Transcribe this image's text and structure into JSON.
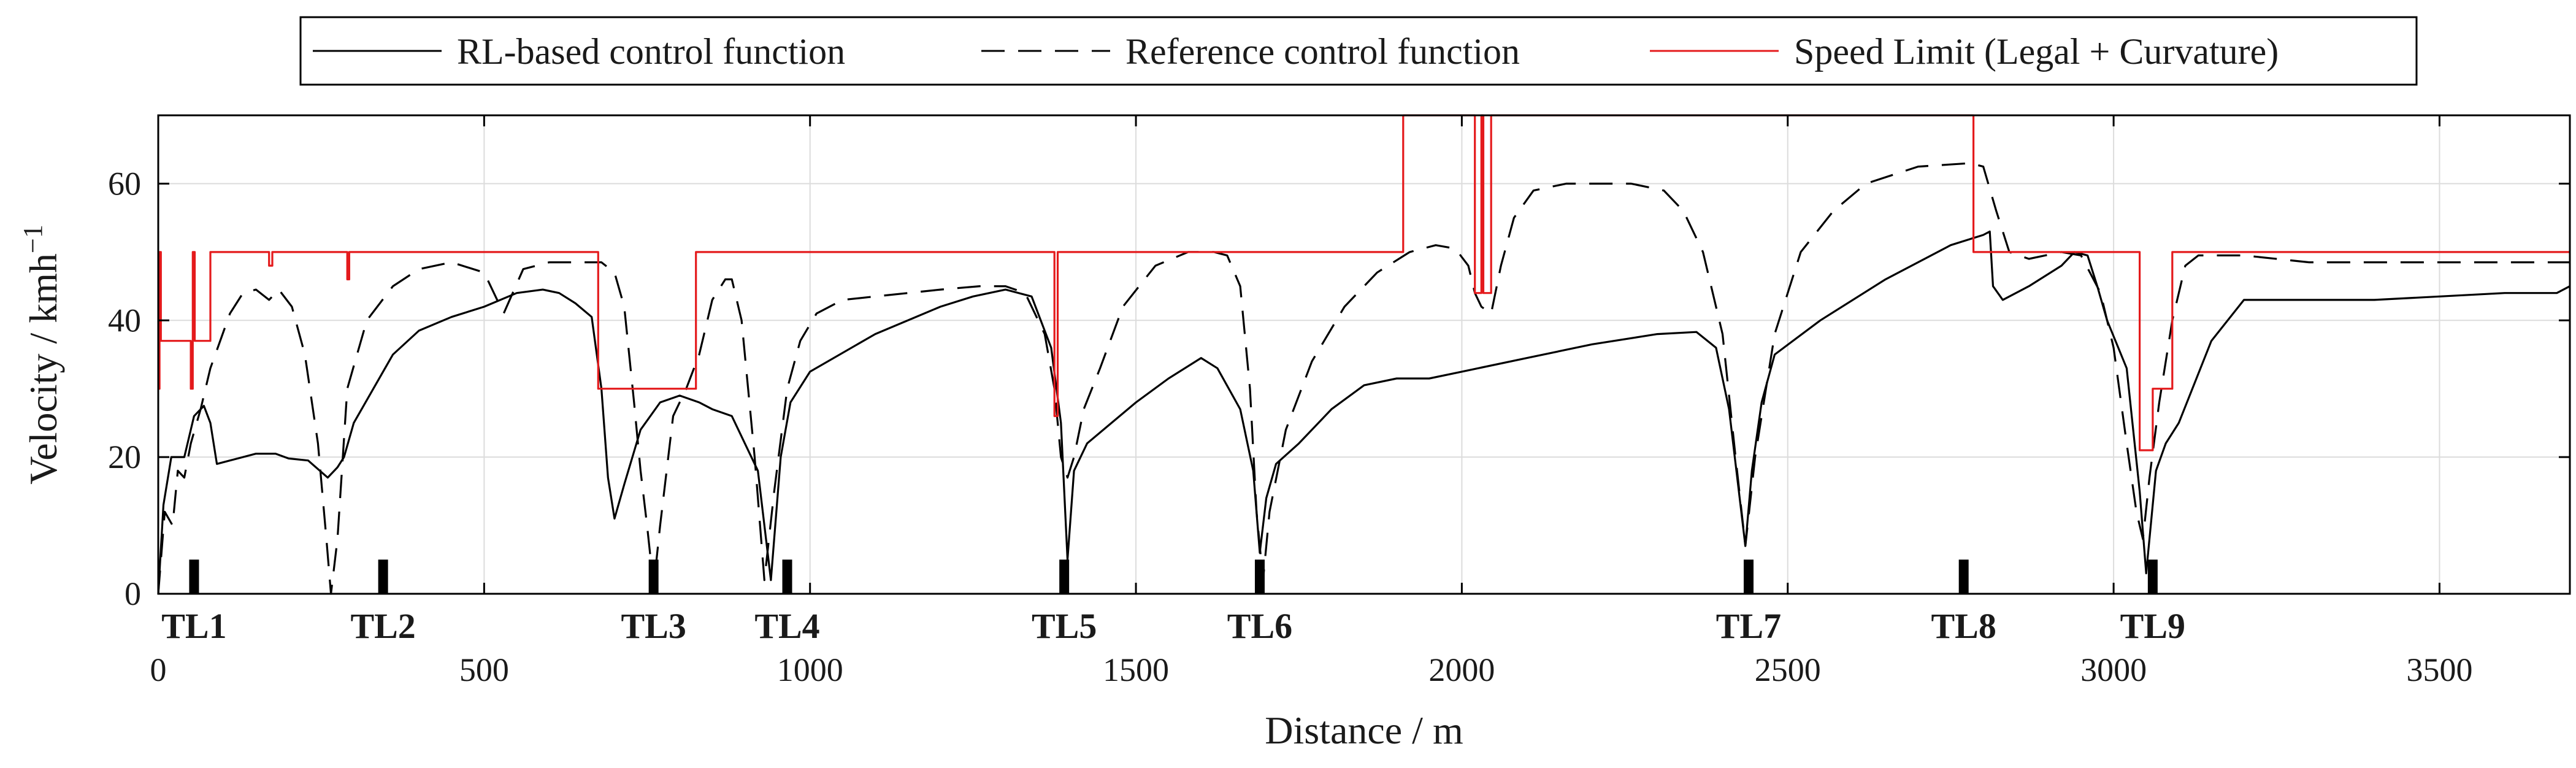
{
  "chart_data": {
    "type": "line",
    "xlabel": "Distance / m",
    "ylabel": "Velocity / kmh",
    "ylabel_exponent": "−1",
    "xlim": [
      0,
      3700
    ],
    "ylim": [
      0,
      70
    ],
    "grid": true,
    "legend_position": "top-center",
    "x_ticks": [
      {
        "value": 0,
        "label": "0"
      },
      {
        "value": 500,
        "label": "500"
      },
      {
        "value": 1000,
        "label": "1000"
      },
      {
        "value": 1500,
        "label": "1500"
      },
      {
        "value": 2000,
        "label": "2000"
      },
      {
        "value": 2500,
        "label": "2500"
      },
      {
        "value": 3000,
        "label": "3000"
      },
      {
        "value": 3500,
        "label": "3500"
      }
    ],
    "y_ticks": [
      {
        "value": 0,
        "label": "0"
      },
      {
        "value": 20,
        "label": "20"
      },
      {
        "value": 40,
        "label": "40"
      },
      {
        "value": 60,
        "label": "60"
      }
    ],
    "series": [
      {
        "name": "RL-based control function",
        "style": "solid",
        "color": "#000000",
        "points": [
          [
            0,
            0
          ],
          [
            8,
            13
          ],
          [
            20,
            20
          ],
          [
            40,
            20
          ],
          [
            55,
            26
          ],
          [
            70,
            27.5
          ],
          [
            80,
            25
          ],
          [
            90,
            19
          ],
          [
            110,
            19.5
          ],
          [
            150,
            20.5
          ],
          [
            180,
            20.5
          ],
          [
            200,
            19.8
          ],
          [
            230,
            19.5
          ],
          [
            260,
            17
          ],
          [
            275,
            18.5
          ],
          [
            285,
            20
          ],
          [
            300,
            25
          ],
          [
            330,
            30
          ],
          [
            360,
            35
          ],
          [
            400,
            38.5
          ],
          [
            450,
            40.5
          ],
          [
            500,
            42
          ],
          [
            550,
            44
          ],
          [
            590,
            44.5
          ],
          [
            615,
            44
          ],
          [
            640,
            42.5
          ],
          [
            665,
            40.5
          ],
          [
            680,
            30
          ],
          [
            690,
            17
          ],
          [
            700,
            11
          ],
          [
            715,
            16
          ],
          [
            740,
            24
          ],
          [
            770,
            28
          ],
          [
            800,
            29
          ],
          [
            830,
            28
          ],
          [
            850,
            27
          ],
          [
            880,
            26
          ],
          [
            920,
            18
          ],
          [
            940,
            2
          ],
          [
            955,
            20
          ],
          [
            970,
            28
          ],
          [
            1000,
            32.5
          ],
          [
            1100,
            38
          ],
          [
            1200,
            42
          ],
          [
            1250,
            43.5
          ],
          [
            1300,
            44.5
          ],
          [
            1340,
            43.5
          ],
          [
            1370,
            36
          ],
          [
            1385,
            25
          ],
          [
            1395,
            5
          ],
          [
            1405,
            18
          ],
          [
            1425,
            22
          ],
          [
            1450,
            24
          ],
          [
            1500,
            28
          ],
          [
            1550,
            31.5
          ],
          [
            1600,
            34.5
          ],
          [
            1625,
            33
          ],
          [
            1660,
            27
          ],
          [
            1680,
            18
          ],
          [
            1690,
            6
          ],
          [
            1700,
            14
          ],
          [
            1715,
            19
          ],
          [
            1750,
            22
          ],
          [
            1800,
            27
          ],
          [
            1850,
            30.5
          ],
          [
            1900,
            31.5
          ],
          [
            1950,
            31.5
          ],
          [
            2000,
            32.5
          ],
          [
            2100,
            34.5
          ],
          [
            2200,
            36.5
          ],
          [
            2300,
            38
          ],
          [
            2360,
            38.3
          ],
          [
            2390,
            36
          ],
          [
            2410,
            27
          ],
          [
            2425,
            15
          ],
          [
            2435,
            7
          ],
          [
            2445,
            18
          ],
          [
            2460,
            28
          ],
          [
            2480,
            35
          ],
          [
            2550,
            40
          ],
          [
            2650,
            46
          ],
          [
            2750,
            51
          ],
          [
            2800,
            52.5
          ],
          [
            2810,
            53
          ],
          [
            2815,
            45
          ],
          [
            2830,
            43
          ],
          [
            2870,
            45
          ],
          [
            2920,
            48
          ],
          [
            2940,
            50
          ],
          [
            2960,
            49.5
          ],
          [
            2975,
            45
          ],
          [
            2990,
            40
          ],
          [
            3020,
            33
          ],
          [
            3040,
            15
          ],
          [
            3050,
            3
          ],
          [
            3065,
            18
          ],
          [
            3080,
            22
          ],
          [
            3100,
            25
          ],
          [
            3150,
            37
          ],
          [
            3200,
            43
          ],
          [
            3300,
            43
          ],
          [
            3400,
            43
          ],
          [
            3500,
            43.5
          ],
          [
            3600,
            44
          ],
          [
            3680,
            44
          ],
          [
            3700,
            45
          ]
        ]
      },
      {
        "name": "Reference control function",
        "style": "dashed",
        "color": "#000000",
        "points": [
          [
            0,
            0
          ],
          [
            10,
            12
          ],
          [
            22,
            10
          ],
          [
            30,
            18
          ],
          [
            40,
            17
          ],
          [
            50,
            22
          ],
          [
            65,
            27
          ],
          [
            80,
            33
          ],
          [
            95,
            37
          ],
          [
            110,
            41
          ],
          [
            130,
            44
          ],
          [
            150,
            44.5
          ],
          [
            170,
            43
          ],
          [
            185,
            44.5
          ],
          [
            205,
            42
          ],
          [
            225,
            35
          ],
          [
            245,
            22
          ],
          [
            258,
            8
          ],
          [
            265,
            0
          ],
          [
            275,
            8
          ],
          [
            290,
            30
          ],
          [
            320,
            40
          ],
          [
            360,
            45
          ],
          [
            400,
            47.5
          ],
          [
            450,
            48.5
          ],
          [
            500,
            47
          ],
          [
            530,
            41
          ],
          [
            560,
            47.5
          ],
          [
            600,
            48.5
          ],
          [
            680,
            48.5
          ],
          [
            700,
            47
          ],
          [
            715,
            42
          ],
          [
            730,
            28
          ],
          [
            740,
            18
          ],
          [
            750,
            10
          ],
          [
            760,
            1
          ],
          [
            770,
            10
          ],
          [
            790,
            26
          ],
          [
            810,
            30
          ],
          [
            830,
            35
          ],
          [
            850,
            43
          ],
          [
            870,
            46
          ],
          [
            880,
            46
          ],
          [
            895,
            40
          ],
          [
            915,
            20
          ],
          [
            930,
            2
          ],
          [
            945,
            15
          ],
          [
            965,
            30
          ],
          [
            985,
            37
          ],
          [
            1010,
            41
          ],
          [
            1050,
            43
          ],
          [
            1100,
            43.5
          ],
          [
            1200,
            44.5
          ],
          [
            1260,
            45
          ],
          [
            1300,
            45
          ],
          [
            1330,
            44
          ],
          [
            1360,
            38
          ],
          [
            1375,
            30
          ],
          [
            1385,
            20
          ],
          [
            1395,
            17
          ],
          [
            1405,
            20
          ],
          [
            1420,
            27
          ],
          [
            1445,
            33
          ],
          [
            1480,
            42
          ],
          [
            1530,
            48
          ],
          [
            1580,
            50
          ],
          [
            1620,
            50
          ],
          [
            1640,
            49.5
          ],
          [
            1660,
            45
          ],
          [
            1675,
            30
          ],
          [
            1685,
            12
          ],
          [
            1695,
            2
          ],
          [
            1705,
            12
          ],
          [
            1730,
            24
          ],
          [
            1770,
            34
          ],
          [
            1820,
            42
          ],
          [
            1870,
            47
          ],
          [
            1920,
            50
          ],
          [
            1960,
            51
          ],
          [
            1990,
            50.5
          ],
          [
            2010,
            48
          ],
          [
            2020,
            44
          ],
          [
            2030,
            42
          ],
          [
            2045,
            41
          ],
          [
            2060,
            48
          ],
          [
            2080,
            55
          ],
          [
            2110,
            59
          ],
          [
            2160,
            60
          ],
          [
            2260,
            60
          ],
          [
            2310,
            59
          ],
          [
            2340,
            56
          ],
          [
            2370,
            50
          ],
          [
            2400,
            38
          ],
          [
            2420,
            20
          ],
          [
            2435,
            7
          ],
          [
            2450,
            20
          ],
          [
            2480,
            38
          ],
          [
            2520,
            50
          ],
          [
            2570,
            56
          ],
          [
            2620,
            60
          ],
          [
            2700,
            62.5
          ],
          [
            2780,
            63
          ],
          [
            2800,
            62.5
          ],
          [
            2820,
            56
          ],
          [
            2840,
            50
          ],
          [
            2870,
            49
          ],
          [
            2920,
            50
          ],
          [
            2950,
            49.5
          ],
          [
            2980,
            44
          ],
          [
            3000,
            36
          ],
          [
            3020,
            22
          ],
          [
            3035,
            12
          ],
          [
            3045,
            8
          ],
          [
            3055,
            17
          ],
          [
            3070,
            28
          ],
          [
            3090,
            40
          ],
          [
            3110,
            48
          ],
          [
            3130,
            49.5
          ],
          [
            3200,
            49.5
          ],
          [
            3300,
            48.5
          ],
          [
            3400,
            48.5
          ],
          [
            3500,
            48.5
          ],
          [
            3600,
            48.5
          ],
          [
            3700,
            48.5
          ]
        ]
      },
      {
        "name": "Speed Limit (Legal + Curvature)",
        "style": "solid",
        "color": "#e41a1c",
        "points": [
          [
            0,
            30
          ],
          [
            2,
            30
          ],
          [
            2,
            50
          ],
          [
            4,
            50
          ],
          [
            4,
            37
          ],
          [
            50,
            37
          ],
          [
            50,
            30
          ],
          [
            53,
            30
          ],
          [
            53,
            50
          ],
          [
            56,
            50
          ],
          [
            56,
            37
          ],
          [
            80,
            37
          ],
          [
            80,
            50
          ],
          [
            170,
            50
          ],
          [
            170,
            48
          ],
          [
            175,
            48
          ],
          [
            175,
            50
          ],
          [
            290,
            50
          ],
          [
            290,
            46
          ],
          [
            293,
            46
          ],
          [
            293,
            50
          ],
          [
            675,
            50
          ],
          [
            675,
            30
          ],
          [
            825,
            30
          ],
          [
            825,
            50
          ],
          [
            1375,
            50
          ],
          [
            1375,
            26
          ],
          [
            1380,
            26
          ],
          [
            1380,
            50
          ],
          [
            1910,
            50
          ],
          [
            1910,
            70
          ],
          [
            2020,
            70
          ],
          [
            2020,
            44
          ],
          [
            2030,
            44
          ],
          [
            2030,
            70
          ],
          [
            2033,
            70
          ],
          [
            2033,
            44
          ],
          [
            2045,
            44
          ],
          [
            2045,
            70
          ],
          [
            2785,
            70
          ],
          [
            2785,
            50
          ],
          [
            3040,
            50
          ],
          [
            3040,
            21
          ],
          [
            3060,
            21
          ],
          [
            3060,
            30
          ],
          [
            3090,
            30
          ],
          [
            3090,
            50
          ],
          [
            3700,
            50
          ]
        ]
      }
    ],
    "traffic_lights": [
      {
        "label": "TL1",
        "x": 55
      },
      {
        "label": "TL2",
        "x": 345
      },
      {
        "label": "TL3",
        "x": 760
      },
      {
        "label": "TL4",
        "x": 965
      },
      {
        "label": "TL5",
        "x": 1390
      },
      {
        "label": "TL6",
        "x": 1690
      },
      {
        "label": "TL7",
        "x": 2440
      },
      {
        "label": "TL8",
        "x": 2770
      },
      {
        "label": "TL9",
        "x": 3060
      }
    ],
    "traffic_light_marker_height": 5
  }
}
